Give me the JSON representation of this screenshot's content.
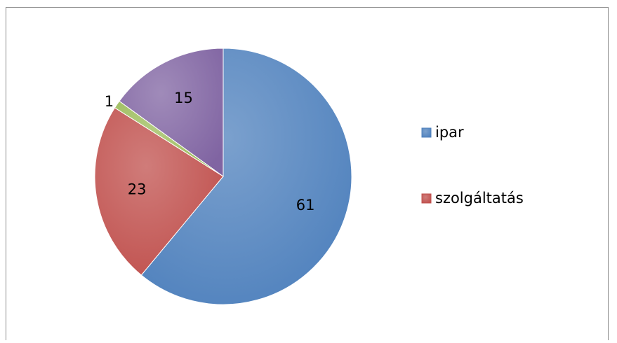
{
  "chart_data": {
    "type": "pie",
    "categories": [
      "ipar",
      "szolgáltatás",
      null,
      null
    ],
    "values": [
      61,
      23,
      1,
      15
    ],
    "colors": [
      "#4f81bd",
      "#c0504d",
      "#9bbb59",
      "#8064a2"
    ],
    "start_angle": 0,
    "direction": "clockwise",
    "legend": "right"
  }
}
